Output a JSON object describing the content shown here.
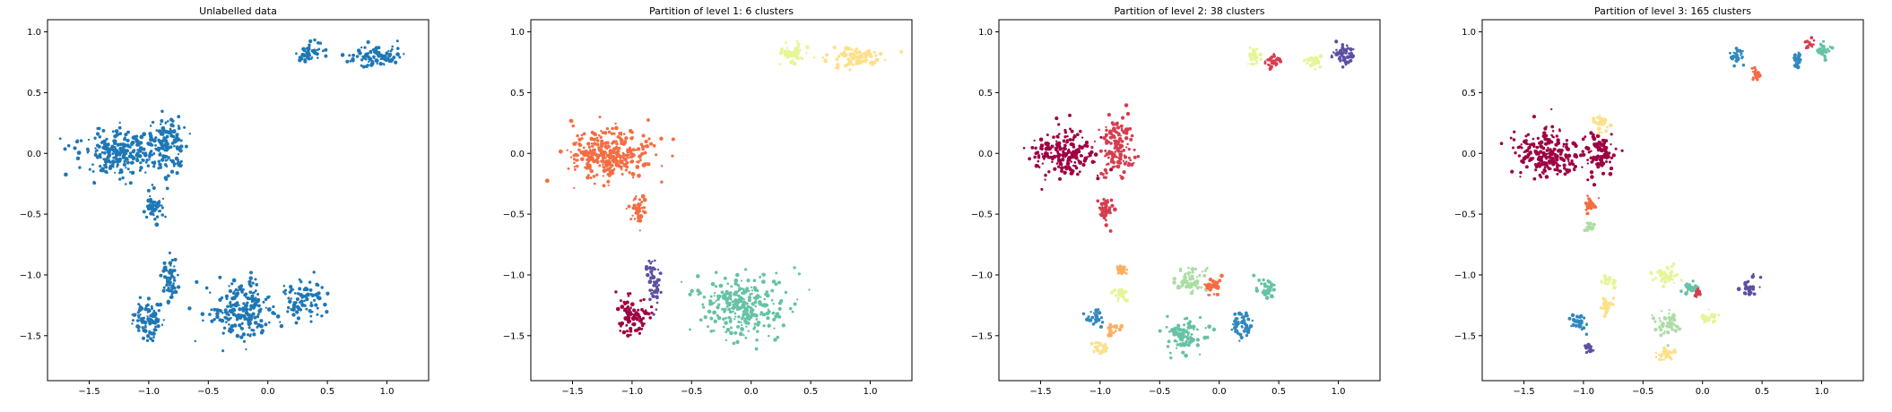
{
  "chart_data": [
    {
      "type": "scatter",
      "title": "Unlabelled data",
      "xlabel": "",
      "ylabel": "",
      "xlim": [
        -1.85,
        1.35
      ],
      "ylim": [
        -1.87,
        1.1
      ],
      "xticks": [
        -1.5,
        -1.0,
        -0.5,
        0.0,
        0.5,
        1.0
      ],
      "yticks": [
        -1.5,
        -1.0,
        -0.5,
        0.0,
        0.5,
        1.0
      ],
      "grid": false,
      "color_mode": "single",
      "color": "#1f77b4",
      "clusters": [
        {
          "x": -1.25,
          "y": 0.0,
          "sx": 0.3,
          "sy": 0.17,
          "n": 240
        },
        {
          "x": -0.85,
          "y": 0.05,
          "sx": 0.15,
          "sy": 0.22,
          "n": 140
        },
        {
          "x": -0.95,
          "y": -0.45,
          "sx": 0.06,
          "sy": 0.1,
          "n": 45
        },
        {
          "x": 0.35,
          "y": 0.82,
          "sx": 0.09,
          "sy": 0.08,
          "n": 55
        },
        {
          "x": 0.9,
          "y": 0.8,
          "sx": 0.2,
          "sy": 0.08,
          "n": 90
        },
        {
          "x": -1.0,
          "y": -1.35,
          "sx": 0.12,
          "sy": 0.14,
          "n": 90
        },
        {
          "x": -0.82,
          "y": -1.05,
          "sx": 0.06,
          "sy": 0.15,
          "n": 60
        },
        {
          "x": -0.2,
          "y": -1.3,
          "sx": 0.25,
          "sy": 0.22,
          "n": 210
        },
        {
          "x": 0.3,
          "y": -1.2,
          "sx": 0.15,
          "sy": 0.15,
          "n": 90
        }
      ]
    },
    {
      "type": "scatter",
      "title": "Partition of level 1: 6 clusters",
      "xlabel": "",
      "ylabel": "",
      "xlim": [
        -1.85,
        1.35
      ],
      "ylim": [
        -1.87,
        1.1
      ],
      "xticks": [
        -1.5,
        -1.0,
        -0.5,
        0.0,
        0.5,
        1.0
      ],
      "yticks": [
        -1.5,
        -1.0,
        -0.5,
        0.0,
        0.5,
        1.0
      ],
      "grid": false,
      "color_mode": "by-cluster",
      "palette": [
        "#9e0142",
        "#d53e4f",
        "#f46d43",
        "#fdae61",
        "#fee08b",
        "#e6f598",
        "#abdda4",
        "#66c2a5",
        "#3288bd",
        "#5e4fa2"
      ],
      "clusters": [
        {
          "x": -1.2,
          "y": 0.0,
          "sx": 0.3,
          "sy": 0.19,
          "n": 320,
          "color": "#f46d43"
        },
        {
          "x": -0.95,
          "y": -0.45,
          "sx": 0.06,
          "sy": 0.1,
          "n": 45,
          "color": "#f46d43"
        },
        {
          "x": 0.35,
          "y": 0.82,
          "sx": 0.09,
          "sy": 0.08,
          "n": 55,
          "color": "#e6f598"
        },
        {
          "x": 0.9,
          "y": 0.8,
          "sx": 0.2,
          "sy": 0.08,
          "n": 90,
          "color": "#fee08b"
        },
        {
          "x": -1.0,
          "y": -1.35,
          "sx": 0.12,
          "sy": 0.14,
          "n": 90,
          "color": "#9e0142"
        },
        {
          "x": -0.82,
          "y": -1.05,
          "sx": 0.06,
          "sy": 0.15,
          "n": 60,
          "color": "#5e4fa2"
        },
        {
          "x": -0.05,
          "y": -1.25,
          "sx": 0.3,
          "sy": 0.22,
          "n": 290,
          "color": "#66c2a5"
        }
      ]
    },
    {
      "type": "scatter",
      "title": "Partition of level 2: 38 clusters",
      "xlabel": "",
      "ylabel": "",
      "xlim": [
        -1.85,
        1.35
      ],
      "ylim": [
        -1.87,
        1.1
      ],
      "xticks": [
        -1.5,
        -1.0,
        -0.5,
        0.0,
        0.5,
        1.0
      ],
      "yticks": [
        -1.5,
        -1.0,
        -0.5,
        0.0,
        0.5,
        1.0
      ],
      "grid": false,
      "color_mode": "by-cluster",
      "palette": [
        "#9e0142",
        "#d53e4f",
        "#f46d43",
        "#fdae61",
        "#fee08b",
        "#e6f598",
        "#abdda4",
        "#66c2a5",
        "#3288bd",
        "#5e4fa2"
      ],
      "clusters": [
        {
          "x": -1.3,
          "y": 0.0,
          "sx": 0.25,
          "sy": 0.17,
          "n": 200,
          "color": "#9e0142"
        },
        {
          "x": -0.85,
          "y": 0.05,
          "sx": 0.15,
          "sy": 0.22,
          "n": 140,
          "color": "#d53e4f"
        },
        {
          "x": -0.95,
          "y": -0.45,
          "sx": 0.06,
          "sy": 0.1,
          "n": 45,
          "color": "#d53e4f"
        },
        {
          "x": 0.3,
          "y": 0.8,
          "sx": 0.05,
          "sy": 0.06,
          "n": 25,
          "color": "#e6f598"
        },
        {
          "x": 0.45,
          "y": 0.75,
          "sx": 0.06,
          "sy": 0.06,
          "n": 30,
          "color": "#d53e4f"
        },
        {
          "x": 0.8,
          "y": 0.75,
          "sx": 0.06,
          "sy": 0.06,
          "n": 30,
          "color": "#e6f598"
        },
        {
          "x": 1.05,
          "y": 0.82,
          "sx": 0.08,
          "sy": 0.07,
          "n": 50,
          "color": "#5e4fa2"
        },
        {
          "x": -1.05,
          "y": -1.35,
          "sx": 0.07,
          "sy": 0.06,
          "n": 30,
          "color": "#3288bd"
        },
        {
          "x": -0.9,
          "y": -1.45,
          "sx": 0.05,
          "sy": 0.05,
          "n": 20,
          "color": "#fdae61"
        },
        {
          "x": -1.0,
          "y": -1.6,
          "sx": 0.05,
          "sy": 0.04,
          "n": 20,
          "color": "#fee08b"
        },
        {
          "x": -0.82,
          "y": -0.95,
          "sx": 0.05,
          "sy": 0.05,
          "n": 25,
          "color": "#fdae61"
        },
        {
          "x": -0.82,
          "y": -1.15,
          "sx": 0.05,
          "sy": 0.06,
          "n": 30,
          "color": "#e6f598"
        },
        {
          "x": -0.25,
          "y": -1.05,
          "sx": 0.12,
          "sy": 0.08,
          "n": 70,
          "color": "#abdda4"
        },
        {
          "x": -0.05,
          "y": -1.1,
          "sx": 0.06,
          "sy": 0.07,
          "n": 30,
          "color": "#f46d43"
        },
        {
          "x": -0.3,
          "y": -1.5,
          "sx": 0.15,
          "sy": 0.12,
          "n": 90,
          "color": "#66c2a5"
        },
        {
          "x": 0.2,
          "y": -1.4,
          "sx": 0.08,
          "sy": 0.1,
          "n": 45,
          "color": "#3288bd"
        },
        {
          "x": 0.4,
          "y": -1.1,
          "sx": 0.07,
          "sy": 0.08,
          "n": 35,
          "color": "#66c2a5"
        }
      ]
    },
    {
      "type": "scatter",
      "title": "Partition of level 3: 165 clusters",
      "xlabel": "",
      "ylabel": "",
      "xlim": [
        -1.85,
        1.35
      ],
      "ylim": [
        -1.87,
        1.1
      ],
      "xticks": [
        -1.5,
        -1.0,
        -0.5,
        0.0,
        0.5,
        1.0
      ],
      "yticks": [
        -1.5,
        -1.0,
        -0.5,
        0.0,
        0.5,
        1.0
      ],
      "grid": false,
      "color_mode": "by-cluster",
      "palette": [
        "#9e0142",
        "#d53e4f",
        "#f46d43",
        "#fdae61",
        "#fee08b",
        "#e6f598",
        "#abdda4",
        "#66c2a5",
        "#3288bd",
        "#5e4fa2"
      ],
      "clusters": [
        {
          "x": -1.3,
          "y": 0.0,
          "sx": 0.25,
          "sy": 0.17,
          "n": 220,
          "color": "#9e0142"
        },
        {
          "x": -0.85,
          "y": 0.0,
          "sx": 0.12,
          "sy": 0.15,
          "n": 100,
          "color": "#9e0142"
        },
        {
          "x": -0.85,
          "y": 0.25,
          "sx": 0.08,
          "sy": 0.05,
          "n": 35,
          "color": "#fee08b"
        },
        {
          "x": -0.95,
          "y": -0.42,
          "sx": 0.05,
          "sy": 0.06,
          "n": 25,
          "color": "#f46d43"
        },
        {
          "x": -0.95,
          "y": -0.6,
          "sx": 0.04,
          "sy": 0.04,
          "n": 15,
          "color": "#abdda4"
        },
        {
          "x": 0.3,
          "y": 0.8,
          "sx": 0.06,
          "sy": 0.06,
          "n": 30,
          "color": "#3288bd"
        },
        {
          "x": 0.45,
          "y": 0.65,
          "sx": 0.05,
          "sy": 0.05,
          "n": 20,
          "color": "#f46d43"
        },
        {
          "x": 0.8,
          "y": 0.75,
          "sx": 0.05,
          "sy": 0.06,
          "n": 25,
          "color": "#3288bd"
        },
        {
          "x": 1.0,
          "y": 0.85,
          "sx": 0.07,
          "sy": 0.06,
          "n": 35,
          "color": "#66c2a5"
        },
        {
          "x": 0.9,
          "y": 0.9,
          "sx": 0.05,
          "sy": 0.04,
          "n": 15,
          "color": "#d53e4f"
        },
        {
          "x": -1.05,
          "y": -1.4,
          "sx": 0.07,
          "sy": 0.07,
          "n": 30,
          "color": "#3288bd"
        },
        {
          "x": -0.95,
          "y": -1.6,
          "sx": 0.04,
          "sy": 0.04,
          "n": 15,
          "color": "#5e4fa2"
        },
        {
          "x": -0.8,
          "y": -1.05,
          "sx": 0.05,
          "sy": 0.05,
          "n": 20,
          "color": "#e6f598"
        },
        {
          "x": -0.8,
          "y": -1.25,
          "sx": 0.06,
          "sy": 0.06,
          "n": 25,
          "color": "#fee08b"
        },
        {
          "x": -0.3,
          "y": -1.0,
          "sx": 0.1,
          "sy": 0.06,
          "n": 45,
          "color": "#e6f598"
        },
        {
          "x": -0.1,
          "y": -1.1,
          "sx": 0.06,
          "sy": 0.05,
          "n": 25,
          "color": "#66c2a5"
        },
        {
          "x": -0.05,
          "y": -1.15,
          "sx": 0.04,
          "sy": 0.03,
          "n": 12,
          "color": "#d53e4f"
        },
        {
          "x": -0.3,
          "y": -1.4,
          "sx": 0.1,
          "sy": 0.08,
          "n": 45,
          "color": "#abdda4"
        },
        {
          "x": -0.3,
          "y": -1.65,
          "sx": 0.08,
          "sy": 0.05,
          "n": 30,
          "color": "#fee08b"
        },
        {
          "x": 0.05,
          "y": -1.35,
          "sx": 0.06,
          "sy": 0.06,
          "n": 25,
          "color": "#e6f598"
        },
        {
          "x": 0.4,
          "y": -1.1,
          "sx": 0.06,
          "sy": 0.07,
          "n": 30,
          "color": "#5e4fa2"
        }
      ]
    }
  ]
}
